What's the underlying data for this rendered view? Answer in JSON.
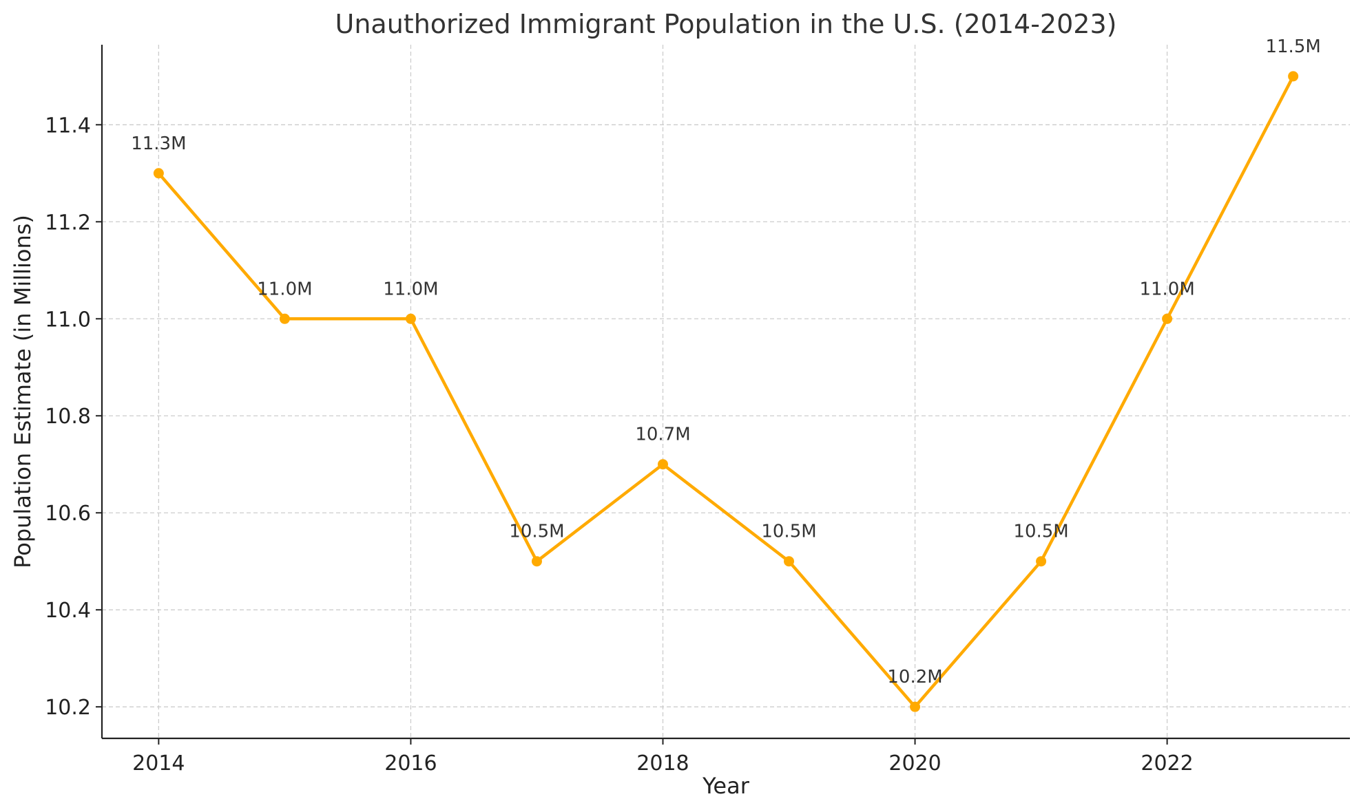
{
  "chart_data": {
    "type": "line",
    "title": "Unauthorized Immigrant Population in the U.S. (2014-2023)",
    "xlabel": "Year",
    "ylabel": "Population Estimate (in Millions)",
    "x": [
      2014,
      2015,
      2016,
      2017,
      2018,
      2019,
      2020,
      2021,
      2022,
      2023
    ],
    "series": [
      {
        "values": [
          11.3,
          11.0,
          11.0,
          10.5,
          10.7,
          10.5,
          10.2,
          10.5,
          11.0,
          11.5
        ],
        "color": "#FFAA00",
        "marker": "circle"
      }
    ],
    "data_labels": [
      "11.3M",
      "11.0M",
      "11.0M",
      "10.5M",
      "10.7M",
      "10.5M",
      "10.2M",
      "10.5M",
      "11.0M",
      "11.5M"
    ],
    "xticks": [
      2014,
      2016,
      2018,
      2020,
      2022
    ],
    "xtick_labels": [
      "2014",
      "2016",
      "2018",
      "2020",
      "2022"
    ],
    "yticks": [
      10.2,
      10.4,
      10.6,
      10.8,
      11.0,
      11.2,
      11.4
    ],
    "ytick_labels": [
      "10.2",
      "10.4",
      "10.6",
      "10.8",
      "11.0",
      "11.2",
      "11.4"
    ],
    "xlim": [
      2013.55,
      2023.45
    ],
    "ylim": [
      10.135,
      11.565
    ],
    "grid": true,
    "legend": "none"
  }
}
